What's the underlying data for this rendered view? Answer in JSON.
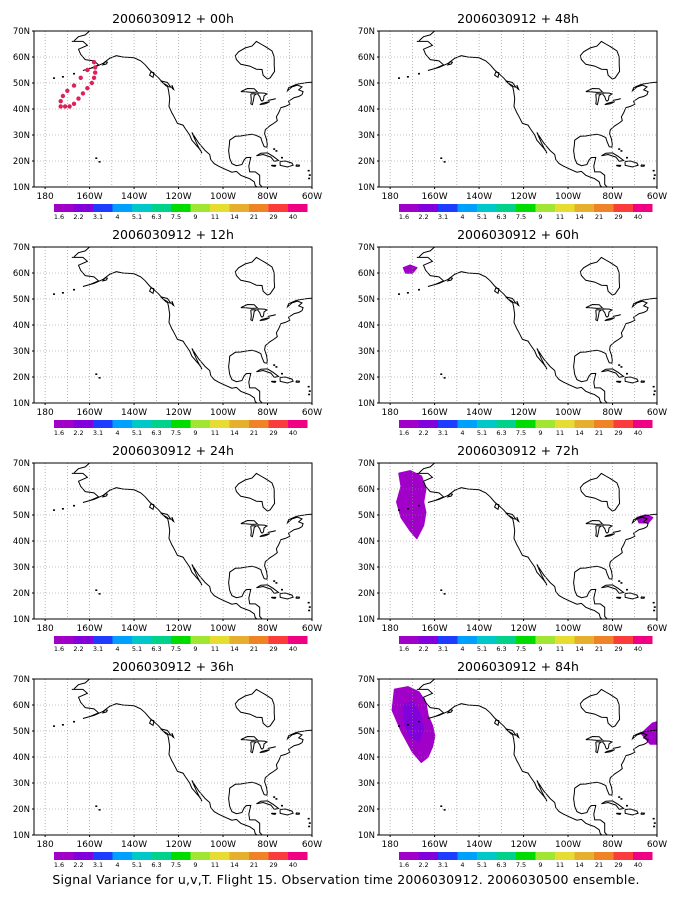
{
  "lat_ticks": [
    "70N",
    "60N",
    "50N",
    "40N",
    "30N",
    "20N",
    "10N"
  ],
  "lon_ticks": [
    "180",
    "160W",
    "140W",
    "120W",
    "100W",
    "80W",
    "60W"
  ],
  "colorbar": {
    "colors": [
      "#a000c8",
      "#8200dc",
      "#1e3cff",
      "#00a0ff",
      "#00c8c8",
      "#00d28c",
      "#00dc00",
      "#a0e632",
      "#e6dc32",
      "#e6af2d",
      "#f08228",
      "#fa3c3c",
      "#f00082"
    ],
    "labels": [
      "1.6",
      "2.2",
      "3.1",
      "4",
      "5.1",
      "6.3",
      "7.5",
      "9",
      "11",
      "14",
      "21",
      "29",
      "40"
    ]
  },
  "panels": [
    {
      "title": "2006030912 + 00h",
      "obs_track": true,
      "blobs": []
    },
    {
      "title": "2006030912 + 12h",
      "obs_track": false,
      "blobs": []
    },
    {
      "title": "2006030912 + 24h",
      "obs_track": false,
      "blobs": []
    },
    {
      "title": "2006030912 + 36h",
      "obs_track": false,
      "blobs": []
    },
    {
      "title": "2006030912 + 48h",
      "obs_track": false,
      "blobs": []
    },
    {
      "title": "2006030912 + 60h",
      "obs_track": false,
      "blobs": [
        {
          "color": "#a000c8",
          "lonlat": [
            [
              -174,
              62
            ],
            [
              -171,
              63
            ],
            [
              -168,
              62
            ],
            [
              -170,
              60
            ],
            [
              -173,
              60
            ]
          ]
        }
      ]
    },
    {
      "title": "2006030912 + 72h",
      "obs_track": false,
      "blobs": [
        {
          "color": "#a000c8",
          "lonlat": [
            [
              -176,
              66
            ],
            [
              -171,
              67
            ],
            [
              -166,
              65
            ],
            [
              -164,
              60
            ],
            [
              -165,
              55
            ],
            [
              -164,
              51
            ],
            [
              -165,
              46
            ],
            [
              -168,
              41
            ],
            [
              -171,
              44
            ],
            [
              -175,
              49
            ],
            [
              -177,
              55
            ],
            [
              -175,
              61
            ]
          ]
        },
        {
          "color": "#a000c8",
          "lonlat": [
            [
              -69,
              49
            ],
            [
              -65,
              50
            ],
            [
              -62,
              49
            ],
            [
              -64,
              47
            ],
            [
              -68,
              47
            ]
          ]
        }
      ]
    },
    {
      "title": "2006030912 + 84h",
      "obs_track": false,
      "blobs": [
        {
          "color": "#a000c8",
          "lonlat": [
            [
              -178,
              66
            ],
            [
              -172,
              67
            ],
            [
              -167,
              65
            ],
            [
              -164,
              61
            ],
            [
              -163,
              56
            ],
            [
              -161,
              52
            ],
            [
              -160,
              48
            ],
            [
              -161,
              44
            ],
            [
              -163,
              40
            ],
            [
              -166,
              38
            ],
            [
              -170,
              42
            ],
            [
              -175,
              50
            ],
            [
              -179,
              58
            ]
          ]
        },
        {
          "color": "#8200dc",
          "lonlat": [
            [
              -174,
              60
            ],
            [
              -170,
              61
            ],
            [
              -167,
              57
            ],
            [
              -165,
              51
            ],
            [
              -167,
              46
            ],
            [
              -171,
              48
            ],
            [
              -174,
              54
            ]
          ]
        },
        {
          "color": "#a000c8",
          "lonlat": [
            [
              -67,
              49
            ],
            [
              -62,
              53
            ],
            [
              -58,
              54
            ],
            [
              -58,
              45
            ],
            [
              -63,
              45
            ]
          ]
        }
      ]
    }
  ],
  "footer": "Signal Variance for u,v,T. Flight 15. Observation time 2006030912. 2006030500 ensemble."
}
